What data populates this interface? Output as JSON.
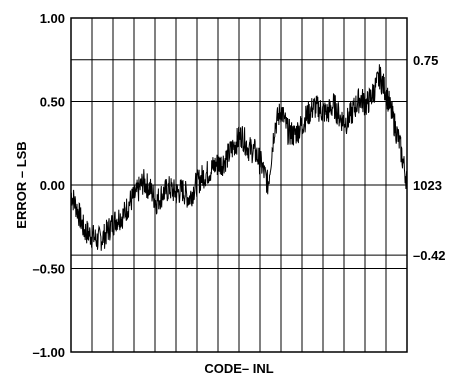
{
  "chart_data": {
    "type": "line",
    "title": "",
    "xlabel": "CODE– INL",
    "ylabel": "ERROR – LSB",
    "xlim": [
      0,
      1023
    ],
    "ylim": [
      -1.0,
      1.0
    ],
    "y_ticks": [
      {
        "value": 1.0,
        "label": "1.00"
      },
      {
        "value": 0.5,
        "label": "0.50"
      },
      {
        "value": 0.0,
        "label": "0.00"
      },
      {
        "value": -0.5,
        "label": "–0.50"
      },
      {
        "value": -1.0,
        "label": "–1.00"
      }
    ],
    "grid": true,
    "vertical_gridlines": 16,
    "annotations": [
      {
        "value": 0.75,
        "label": "0.75"
      },
      {
        "value": 0.0,
        "label": "1023"
      },
      {
        "value": -0.42,
        "label": "–0.42"
      }
    ],
    "series": [
      {
        "x": [
          0,
          20,
          40,
          60,
          80,
          100,
          120,
          140,
          160,
          180,
          200,
          220,
          240,
          260,
          280,
          300,
          320,
          340,
          360,
          380,
          400,
          420,
          440,
          460,
          480,
          500,
          520,
          540,
          560,
          580,
          600,
          620,
          640,
          660,
          680,
          700,
          720,
          740,
          760,
          780,
          800,
          820,
          840,
          860,
          880,
          900,
          920,
          940,
          960,
          980,
          1000,
          1023
        ],
        "y": [
          -0.05,
          -0.15,
          -0.27,
          -0.3,
          -0.33,
          -0.31,
          -0.25,
          -0.2,
          -0.18,
          -0.1,
          -0.05,
          0.02,
          -0.02,
          -0.1,
          -0.05,
          -0.02,
          -0.05,
          -0.03,
          -0.08,
          0.0,
          0.05,
          0.08,
          0.12,
          0.13,
          0.18,
          0.25,
          0.3,
          0.22,
          0.2,
          0.12,
          0.0,
          0.35,
          0.45,
          0.32,
          0.3,
          0.35,
          0.42,
          0.47,
          0.45,
          0.43,
          0.48,
          0.4,
          0.38,
          0.45,
          0.52,
          0.48,
          0.55,
          0.65,
          0.55,
          0.4,
          0.25,
          0.02
        ]
      }
    ]
  }
}
